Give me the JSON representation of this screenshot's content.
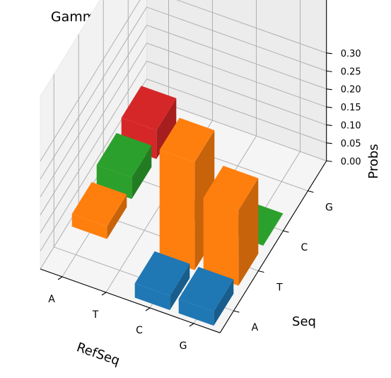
{
  "chart_data": {
    "type": "bar3d",
    "title": "Gamma Point Mutation Probabilities",
    "xlabel": "RefSeq",
    "ylabel": "Seq",
    "zlabel": "Probs",
    "x_categories": [
      "A",
      "T",
      "C",
      "G"
    ],
    "y_categories": [
      "A",
      "T",
      "C",
      "G"
    ],
    "z_ticks": [
      "0.00",
      "0.05",
      "0.10",
      "0.15",
      "0.20",
      "0.25",
      "0.30"
    ],
    "zlim": [
      0,
      0.32
    ],
    "grid": true,
    "bars": [
      {
        "ref": "A",
        "seq": "A",
        "value": 0.0
      },
      {
        "ref": "A",
        "seq": "T",
        "value": 0.035
      },
      {
        "ref": "A",
        "seq": "C",
        "value": 0.06
      },
      {
        "ref": "A",
        "seq": "G",
        "value": 0.08
      },
      {
        "ref": "T",
        "seq": "A",
        "value": 0.0
      },
      {
        "ref": "T",
        "seq": "T",
        "value": 0.0
      },
      {
        "ref": "T",
        "seq": "C",
        "value": 0.0
      },
      {
        "ref": "T",
        "seq": "G",
        "value": 0.0
      },
      {
        "ref": "C",
        "seq": "A",
        "value": 0.04
      },
      {
        "ref": "C",
        "seq": "T",
        "value": 0.3
      },
      {
        "ref": "C",
        "seq": "C",
        "value": 0.003
      },
      {
        "ref": "C",
        "seq": "G",
        "value": 0.0
      },
      {
        "ref": "G",
        "seq": "A",
        "value": 0.04
      },
      {
        "ref": "G",
        "seq": "T",
        "value": 0.21
      },
      {
        "ref": "G",
        "seq": "C",
        "value": 0.001
      },
      {
        "ref": "G",
        "seq": "G",
        "value": 0.0
      }
    ],
    "seq_colors": {
      "A": "#1f77b4",
      "T": "#ff7f0e",
      "C": "#2ca02c",
      "G": "#d62728"
    }
  }
}
